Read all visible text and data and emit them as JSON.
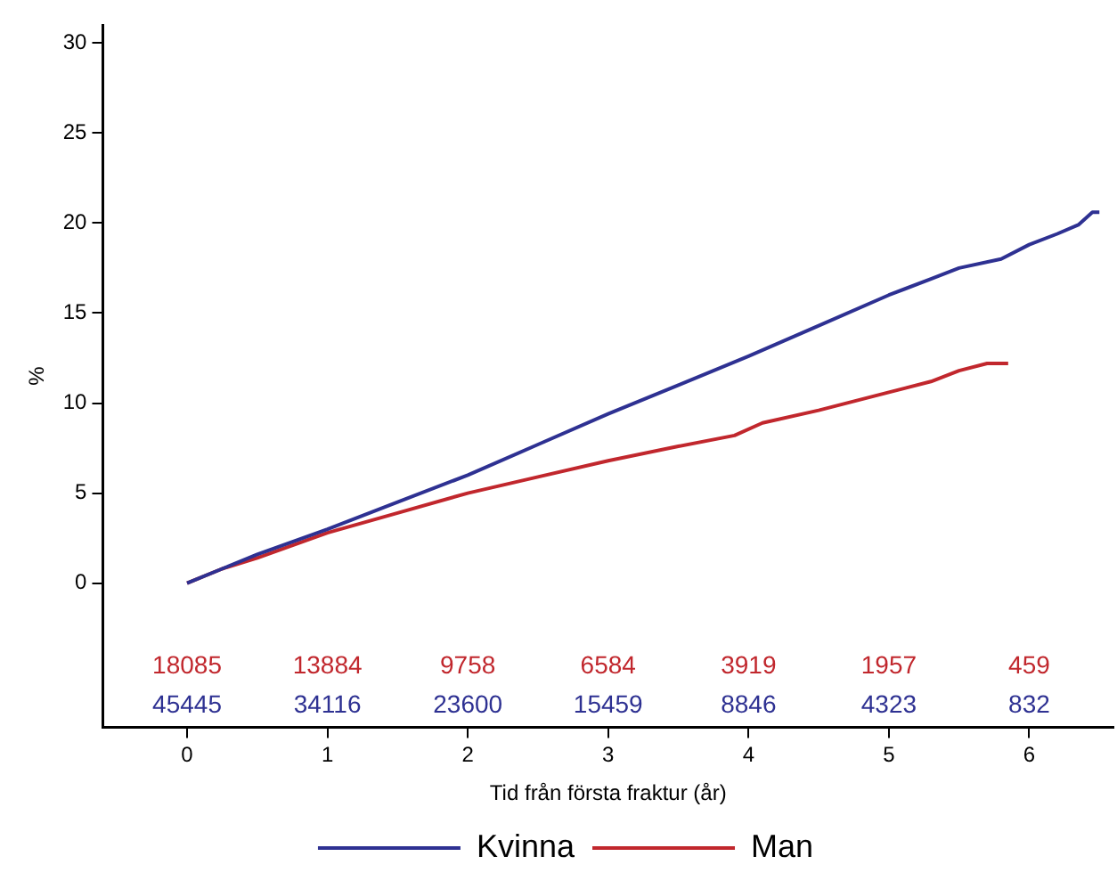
{
  "chart_data": {
    "type": "line",
    "xlabel": "Tid från första fraktur (år)",
    "ylabel": "%",
    "xlim": [
      -0.6,
      6.6
    ],
    "xticks": [
      0,
      1,
      2,
      3,
      4,
      5,
      6
    ],
    "ylim": [
      -8,
      31
    ],
    "yticks": [
      0,
      5,
      10,
      15,
      20,
      25,
      30
    ],
    "grid": false,
    "legend": "bottom",
    "marker": "none",
    "line_style": "solid",
    "series": [
      {
        "name": "Kvinna",
        "color": "#2e3192",
        "x": [
          0,
          0.25,
          0.5,
          1,
          1.5,
          2,
          2.5,
          3,
          3.5,
          4,
          4.5,
          5,
          5.3,
          5.5,
          5.8,
          6,
          6.2,
          6.35,
          6.45,
          6.5
        ],
        "values": [
          0,
          0.8,
          1.6,
          3.0,
          4.5,
          6.0,
          7.7,
          9.4,
          11.0,
          12.6,
          14.3,
          16.0,
          16.9,
          17.5,
          18.0,
          18.8,
          19.4,
          19.9,
          20.6,
          20.6
        ]
      },
      {
        "name": "Man",
        "color": "#c1272d",
        "x": [
          0,
          0.25,
          0.5,
          1,
          1.5,
          2,
          2.5,
          3,
          3.5,
          3.9,
          4.1,
          4.5,
          5,
          5.3,
          5.5,
          5.7,
          5.85
        ],
        "values": [
          0,
          0.8,
          1.4,
          2.8,
          3.9,
          5.0,
          5.9,
          6.8,
          7.6,
          8.2,
          8.9,
          9.6,
          10.6,
          11.2,
          11.8,
          12.2,
          12.2
        ]
      }
    ],
    "annotations": [
      "18085",
      "13884",
      "9758",
      "6584",
      "3919",
      "1957",
      "459",
      "45445",
      "34116",
      "23600",
      "15459",
      "8846",
      "4323",
      "832"
    ]
  }
}
